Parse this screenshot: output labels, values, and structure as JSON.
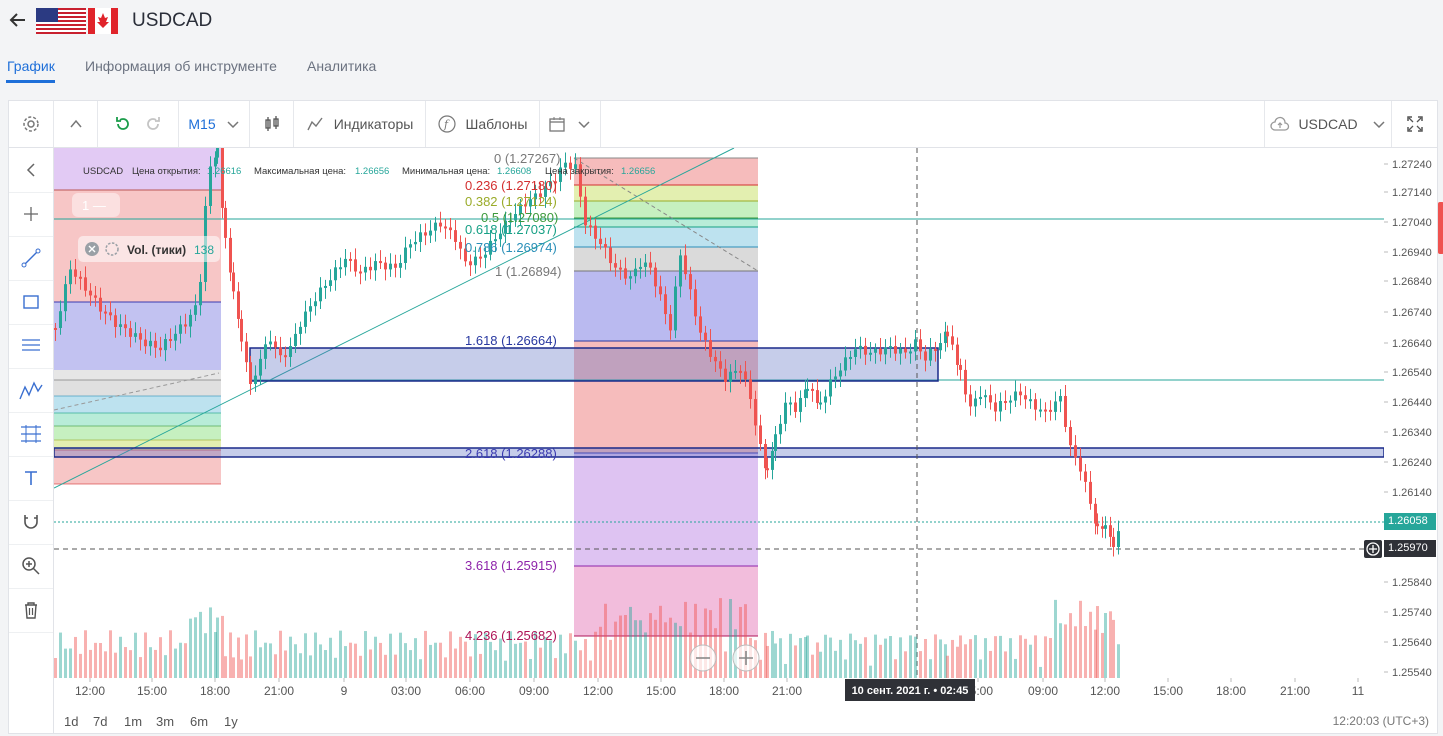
{
  "header": {
    "title": "USDCAD"
  },
  "tabs": [
    {
      "label": "График",
      "active": true
    },
    {
      "label": "Информация об инструменте",
      "active": false
    },
    {
      "label": "Аналитика",
      "active": false
    }
  ],
  "toolbar": {
    "timeframe": "M15",
    "indicators_label": "Индикаторы",
    "templates_label": "Шаблоны",
    "symbol_select": "USDCAD"
  },
  "legend": {
    "symbol": "USDCAD",
    "open_label": "Цена открытия:",
    "open_value": "1.26616",
    "high_label": "Максимальная цена:",
    "high_value": "1.26656",
    "low_label": "Минимальная цена:",
    "low_value": "1.26608",
    "close_label": "Цена закрытия:",
    "close_value": "1.26656",
    "pane_label": "1 —",
    "volume_label": "Vol. (тики)",
    "volume_value": "138"
  },
  "fib_levels": [
    {
      "label": "0 (1.27267)",
      "color": "#787878"
    },
    {
      "label": "0.236 (1.27180)",
      "color": "#d32f2f"
    },
    {
      "label": "0.382 (1.27124)",
      "color": "#9aab29"
    },
    {
      "label": "0.5 (1.27080)",
      "color": "#3d9a3d"
    },
    {
      "label": "0.618 (1.27037)",
      "color": "#16a085"
    },
    {
      "label": "0.786 (1.26974)",
      "color": "#2a8fb8"
    },
    {
      "label": "1 (1.26894)",
      "color": "#787878"
    },
    {
      "label": "1.618 (1.26664)",
      "color": "#2838a0"
    },
    {
      "label": "2.618 (1.26288)",
      "color": "#3a3ab0"
    },
    {
      "label": "3.618 (1.25915)",
      "color": "#8e24aa"
    },
    {
      "label": "4.236 (1.25682)",
      "color": "#ad1457"
    }
  ],
  "price_axis": {
    "ticks": [
      "1.27240",
      "1.27140",
      "1.27040",
      "1.26940",
      "1.26840",
      "1.26740",
      "1.26640",
      "1.26540",
      "1.26440",
      "1.26340",
      "1.26240",
      "1.26140",
      "1.25840",
      "1.25740",
      "1.25640",
      "1.25540"
    ],
    "last_price": "1.26058",
    "cursor_price": "1.25970"
  },
  "time_axis": {
    "ticks": [
      "12:00",
      "15:00",
      "18:00",
      "21:00",
      "9",
      "03:00",
      "06:00",
      "09:00",
      "12:00",
      "15:00",
      "18:00",
      "21:00",
      "",
      "",
      "05:00",
      "09:00",
      "12:00",
      "15:00",
      "18:00",
      "21:00",
      "11"
    ],
    "crosshair_label": "10 сент. 2021 г. • 02:45"
  },
  "periods": [
    "1d",
    "7d",
    "1m",
    "3m",
    "6m",
    "1y"
  ],
  "clock": "12:20:03 (UTC+3)",
  "colors": {
    "up": "#26a69a",
    "down": "#ef5350",
    "accent": "#1e6fd9"
  }
}
